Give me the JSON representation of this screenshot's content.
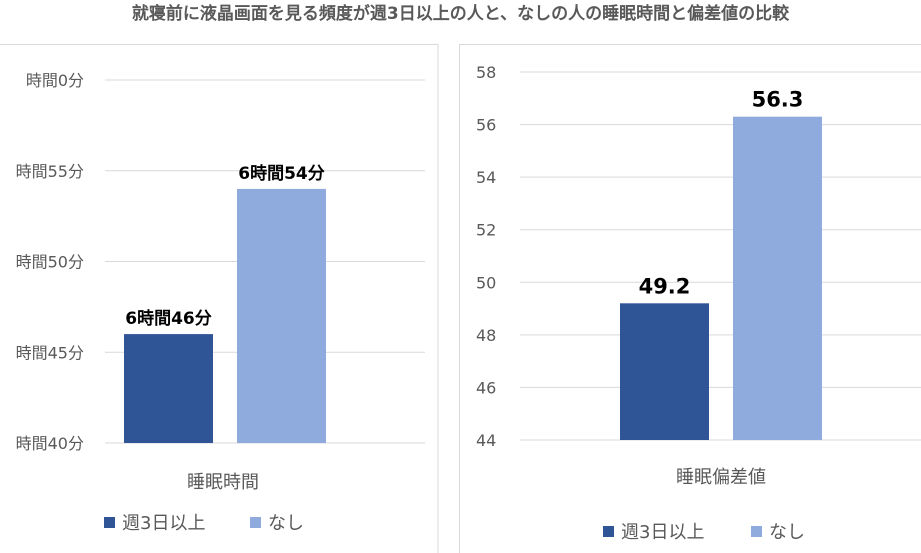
{
  "title": "就寝前に液晶画面を見る頻度が週3日以上の人と、なしの人の睡眠時間と偏差値の比較",
  "colors": {
    "series1": "#2f5597",
    "series2": "#8faadc"
  },
  "chart_data": [
    {
      "type": "bar",
      "categories": [
        "睡眠時間"
      ],
      "series": [
        {
          "name": "週3日以上",
          "values": [
            406
          ],
          "label": "6時間46分"
        },
        {
          "name": "なし",
          "values": [
            414
          ],
          "label": "6時間54分"
        }
      ],
      "ylim": [
        400,
        420
      ],
      "ytick_values": [
        400,
        405,
        410,
        415,
        420
      ],
      "ytick_labels": [
        "時間40分",
        "時間45分",
        "時間50分",
        "時間55分",
        "時間0分"
      ],
      "xlabel": "",
      "ylabel": "",
      "grid": true,
      "legend": "bottom"
    },
    {
      "type": "bar",
      "categories": [
        "睡眠偏差値"
      ],
      "series": [
        {
          "name": "週3日以上",
          "values": [
            49.2
          ],
          "label": "49.2"
        },
        {
          "name": "なし",
          "values": [
            56.3
          ],
          "label": "56.3"
        }
      ],
      "ylim": [
        44,
        58
      ],
      "ytick_values": [
        44,
        46,
        48,
        50,
        52,
        54,
        56,
        58
      ],
      "ytick_labels": [
        "44",
        "46",
        "48",
        "50",
        "52",
        "54",
        "56",
        "58"
      ],
      "xlabel": "",
      "ylabel": "",
      "grid": true,
      "legend": "bottom"
    }
  ]
}
